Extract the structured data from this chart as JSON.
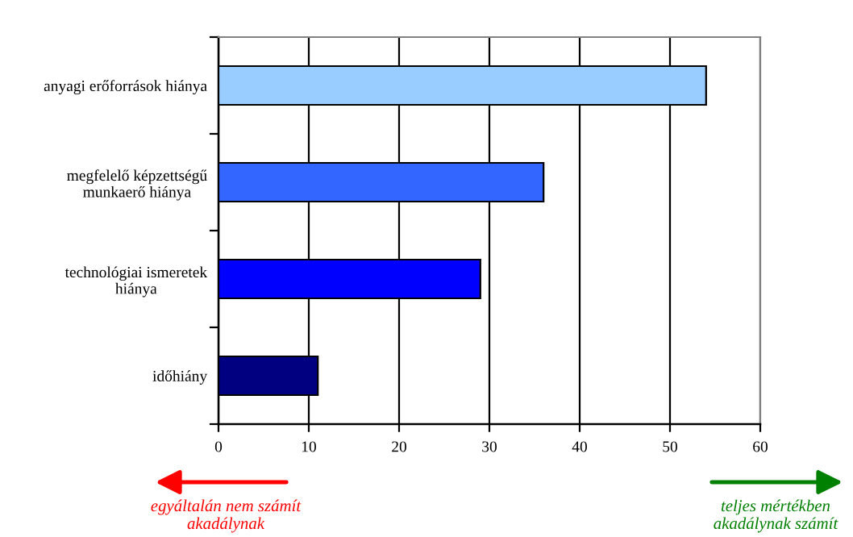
{
  "chart_data": {
    "type": "bar",
    "orientation": "horizontal",
    "categories": [
      "anyagi erőforrások hiánya",
      "megfelelő képzettségű\nmunkaerő hiánya",
      "technológiai ismeretek\nhiánya",
      "időhiány"
    ],
    "values": [
      54,
      36,
      29,
      11
    ],
    "colors": [
      "#99ccff",
      "#3366ff",
      "#0000ff",
      "#000080"
    ],
    "xlim": [
      0,
      60
    ],
    "xticks": [
      0,
      10,
      20,
      30,
      40,
      50,
      60
    ],
    "grid": "x",
    "annotations": [
      "egyáltalán nem számít\nakadálynak",
      "teljes mértékben\nakadálynak számít"
    ]
  }
}
